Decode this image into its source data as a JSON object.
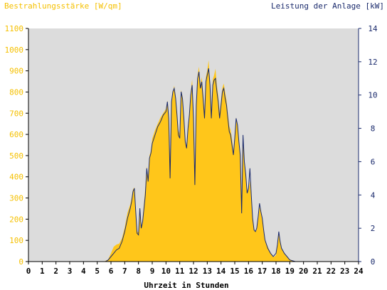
{
  "colors": {
    "plot_bg": "#dcdcdc",
    "irradiance_fill": "#ffc61a",
    "power_line": "#1a2a6c",
    "left_axis": "#f5c000",
    "right_axis": "#1a2a6c",
    "frame": "#000000"
  },
  "chart_data": {
    "type": "area",
    "title_left": "Bestrahlungsstärke [W/qm]",
    "title_right": "Leistung der Anlage [kW]",
    "xlabel": "Uhrzeit in Stunden",
    "xlim": [
      0,
      24
    ],
    "ylim_left": [
      0,
      1100
    ],
    "ylim_right": [
      0,
      14
    ],
    "x_ticks": [
      "0",
      "1",
      "2",
      "3",
      "4",
      "5",
      "6",
      "7",
      "8",
      "9",
      "10",
      "11",
      "12",
      "13",
      "14",
      "15",
      "16",
      "17",
      "18",
      "19",
      "20",
      "21",
      "22",
      "23",
      "24"
    ],
    "y_left_ticks": [
      "0",
      "100",
      "200",
      "300",
      "400",
      "500",
      "600",
      "700",
      "800",
      "900",
      "1000",
      "1100"
    ],
    "y_right_ticks": [
      "0",
      "2",
      "4",
      "6",
      "8",
      "10",
      "12",
      "14"
    ],
    "grid": false,
    "series": [
      {
        "name": "Bestrahlungsstärke [W/qm]",
        "axis": "left",
        "style": "filled-area",
        "points": [
          [
            0,
            0
          ],
          [
            5.5,
            0
          ],
          [
            5.8,
            10
          ],
          [
            6.0,
            40
          ],
          [
            6.2,
            70
          ],
          [
            6.4,
            80
          ],
          [
            6.6,
            85
          ],
          [
            6.8,
            110
          ],
          [
            7.0,
            160
          ],
          [
            7.2,
            230
          ],
          [
            7.4,
            270
          ],
          [
            7.5,
            300
          ],
          [
            7.6,
            340
          ],
          [
            7.7,
            350
          ],
          [
            7.8,
            230
          ],
          [
            7.9,
            140
          ],
          [
            8.0,
            140
          ],
          [
            8.1,
            250
          ],
          [
            8.2,
            160
          ],
          [
            8.3,
            200
          ],
          [
            8.5,
            350
          ],
          [
            8.6,
            450
          ],
          [
            8.7,
            400
          ],
          [
            8.8,
            500
          ],
          [
            8.9,
            520
          ],
          [
            9.0,
            580
          ],
          [
            9.2,
            620
          ],
          [
            9.4,
            650
          ],
          [
            9.6,
            680
          ],
          [
            9.8,
            700
          ],
          [
            10.0,
            720
          ],
          [
            10.1,
            760
          ],
          [
            10.2,
            700
          ],
          [
            10.3,
            480
          ],
          [
            10.4,
            760
          ],
          [
            10.5,
            800
          ],
          [
            10.6,
            830
          ],
          [
            10.7,
            780
          ],
          [
            10.8,
            700
          ],
          [
            10.9,
            620
          ],
          [
            11.0,
            600
          ],
          [
            11.1,
            810
          ],
          [
            11.2,
            780
          ],
          [
            11.3,
            680
          ],
          [
            11.4,
            580
          ],
          [
            11.5,
            540
          ],
          [
            11.6,
            640
          ],
          [
            11.7,
            700
          ],
          [
            11.8,
            800
          ],
          [
            11.9,
            860
          ],
          [
            12.0,
            700
          ],
          [
            12.1,
            400
          ],
          [
            12.2,
            750
          ],
          [
            12.3,
            880
          ],
          [
            12.4,
            920
          ],
          [
            12.5,
            830
          ],
          [
            12.6,
            870
          ],
          [
            12.7,
            800
          ],
          [
            12.8,
            700
          ],
          [
            12.9,
            870
          ],
          [
            13.0,
            900
          ],
          [
            13.1,
            950
          ],
          [
            13.2,
            850
          ],
          [
            13.3,
            700
          ],
          [
            13.4,
            860
          ],
          [
            13.5,
            880
          ],
          [
            13.6,
            910
          ],
          [
            13.7,
            830
          ],
          [
            13.8,
            780
          ],
          [
            13.9,
            700
          ],
          [
            14.0,
            760
          ],
          [
            14.1,
            820
          ],
          [
            14.2,
            840
          ],
          [
            14.3,
            800
          ],
          [
            14.4,
            760
          ],
          [
            14.5,
            700
          ],
          [
            14.6,
            640
          ],
          [
            14.7,
            620
          ],
          [
            14.8,
            580
          ],
          [
            14.9,
            520
          ],
          [
            15.0,
            600
          ],
          [
            15.1,
            680
          ],
          [
            15.2,
            640
          ],
          [
            15.3,
            560
          ],
          [
            15.4,
            500
          ],
          [
            15.5,
            220
          ],
          [
            15.6,
            600
          ],
          [
            15.7,
            480
          ],
          [
            15.8,
            420
          ],
          [
            15.9,
            320
          ],
          [
            16.0,
            340
          ],
          [
            16.1,
            380
          ],
          [
            16.2,
            300
          ],
          [
            16.3,
            200
          ],
          [
            16.4,
            150
          ],
          [
            16.5,
            140
          ],
          [
            16.6,
            150
          ],
          [
            16.7,
            200
          ],
          [
            16.8,
            260
          ],
          [
            16.9,
            230
          ],
          [
            17.0,
            200
          ],
          [
            17.1,
            150
          ],
          [
            17.2,
            100
          ],
          [
            17.4,
            70
          ],
          [
            17.6,
            40
          ],
          [
            17.8,
            20
          ],
          [
            18.0,
            30
          ],
          [
            18.1,
            80
          ],
          [
            18.2,
            130
          ],
          [
            18.3,
            90
          ],
          [
            18.4,
            60
          ],
          [
            18.6,
            40
          ],
          [
            18.8,
            20
          ],
          [
            19.0,
            10
          ],
          [
            19.2,
            5
          ],
          [
            19.4,
            0
          ],
          [
            24,
            0
          ]
        ]
      },
      {
        "name": "Leistung der Anlage [kW]",
        "axis": "right",
        "style": "line",
        "points": [
          [
            0,
            0
          ],
          [
            5.6,
            0
          ],
          [
            5.8,
            0.1
          ],
          [
            6.0,
            0.3
          ],
          [
            6.2,
            0.5
          ],
          [
            6.4,
            0.7
          ],
          [
            6.6,
            0.8
          ],
          [
            6.8,
            1.2
          ],
          [
            7.0,
            1.8
          ],
          [
            7.2,
            2.6
          ],
          [
            7.4,
            3.2
          ],
          [
            7.5,
            3.6
          ],
          [
            7.6,
            4.2
          ],
          [
            7.7,
            4.4
          ],
          [
            7.8,
            3.0
          ],
          [
            7.9,
            1.7
          ],
          [
            8.0,
            1.6
          ],
          [
            8.1,
            3.2
          ],
          [
            8.2,
            2.0
          ],
          [
            8.3,
            2.4
          ],
          [
            8.5,
            4.0
          ],
          [
            8.6,
            5.6
          ],
          [
            8.7,
            4.8
          ],
          [
            8.8,
            6.2
          ],
          [
            8.9,
            6.5
          ],
          [
            9.0,
            7.1
          ],
          [
            9.2,
            7.6
          ],
          [
            9.4,
            8.1
          ],
          [
            9.6,
            8.4
          ],
          [
            9.8,
            8.8
          ],
          [
            10.0,
            9.0
          ],
          [
            10.1,
            9.6
          ],
          [
            10.2,
            8.6
          ],
          [
            10.3,
            5.0
          ],
          [
            10.4,
            9.6
          ],
          [
            10.5,
            10.2
          ],
          [
            10.6,
            10.4
          ],
          [
            10.7,
            9.8
          ],
          [
            10.8,
            8.8
          ],
          [
            10.9,
            7.6
          ],
          [
            11.0,
            7.4
          ],
          [
            11.1,
            10.2
          ],
          [
            11.2,
            9.8
          ],
          [
            11.3,
            8.6
          ],
          [
            11.4,
            7.2
          ],
          [
            11.5,
            6.8
          ],
          [
            11.6,
            8.0
          ],
          [
            11.7,
            8.8
          ],
          [
            11.8,
            10.0
          ],
          [
            11.9,
            10.6
          ],
          [
            12.0,
            8.6
          ],
          [
            12.1,
            4.6
          ],
          [
            12.2,
            9.4
          ],
          [
            12.3,
            11.0
          ],
          [
            12.4,
            11.4
          ],
          [
            12.5,
            10.4
          ],
          [
            12.6,
            10.8
          ],
          [
            12.7,
            9.8
          ],
          [
            12.8,
            8.6
          ],
          [
            12.9,
            10.8
          ],
          [
            13.0,
            11.2
          ],
          [
            13.1,
            11.6
          ],
          [
            13.2,
            10.6
          ],
          [
            13.3,
            8.6
          ],
          [
            13.4,
            10.6
          ],
          [
            13.5,
            10.9
          ],
          [
            13.6,
            11.0
          ],
          [
            13.7,
            10.2
          ],
          [
            13.8,
            9.6
          ],
          [
            13.9,
            8.6
          ],
          [
            14.0,
            9.4
          ],
          [
            14.1,
            10.2
          ],
          [
            14.2,
            10.4
          ],
          [
            14.3,
            9.8
          ],
          [
            14.4,
            9.4
          ],
          [
            14.5,
            8.6
          ],
          [
            14.6,
            7.8
          ],
          [
            14.7,
            7.6
          ],
          [
            14.8,
            7.0
          ],
          [
            14.9,
            6.4
          ],
          [
            15.0,
            7.4
          ],
          [
            15.1,
            8.6
          ],
          [
            15.2,
            8.2
          ],
          [
            15.3,
            7.2
          ],
          [
            15.4,
            6.4
          ],
          [
            15.5,
            2.9
          ],
          [
            15.6,
            7.6
          ],
          [
            15.7,
            6.0
          ],
          [
            15.8,
            5.2
          ],
          [
            15.9,
            4.1
          ],
          [
            16.0,
            4.4
          ],
          [
            16.1,
            5.6
          ],
          [
            16.2,
            4.0
          ],
          [
            16.3,
            2.6
          ],
          [
            16.4,
            1.9
          ],
          [
            16.5,
            1.8
          ],
          [
            16.6,
            2.0
          ],
          [
            16.7,
            2.7
          ],
          [
            16.8,
            3.5
          ],
          [
            16.9,
            3.0
          ],
          [
            17.0,
            2.6
          ],
          [
            17.1,
            1.9
          ],
          [
            17.2,
            1.3
          ],
          [
            17.4,
            0.8
          ],
          [
            17.6,
            0.5
          ],
          [
            17.8,
            0.3
          ],
          [
            18.0,
            0.5
          ],
          [
            18.1,
            1.0
          ],
          [
            18.2,
            1.8
          ],
          [
            18.3,
            1.2
          ],
          [
            18.4,
            0.8
          ],
          [
            18.6,
            0.5
          ],
          [
            18.8,
            0.3
          ],
          [
            19.0,
            0.1
          ],
          [
            19.2,
            0.05
          ],
          [
            19.4,
            0
          ],
          [
            24,
            0
          ]
        ]
      }
    ]
  }
}
